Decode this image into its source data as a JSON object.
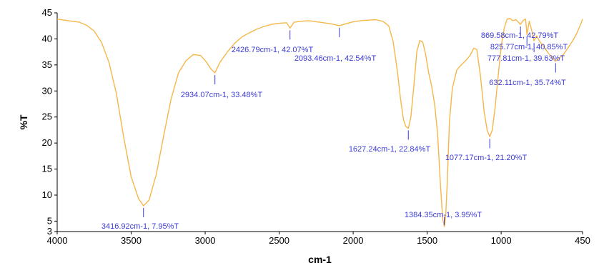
{
  "chart_data": {
    "type": "line",
    "xlabel": "cm-1",
    "ylabel": "%T",
    "xlim": [
      4000,
      450
    ],
    "ylim": [
      3,
      45
    ],
    "x_reversed": true,
    "grid": false,
    "line_color": "#f5b74a",
    "annotation_color": "#3b3bd6",
    "x_ticks": [
      4000,
      3500,
      3000,
      2500,
      2000,
      1500,
      1000,
      450
    ],
    "y_ticks": [
      3,
      5,
      10,
      15,
      20,
      25,
      30,
      35,
      40,
      45
    ],
    "series": [
      {
        "x": [
          4000,
          3950,
          3900,
          3850,
          3800,
          3750,
          3700,
          3650,
          3600,
          3550,
          3500,
          3450,
          3417,
          3380,
          3330,
          3280,
          3230,
          3180,
          3130,
          3080,
          3030,
          2990,
          2960,
          2934,
          2900,
          2850,
          2800,
          2750,
          2700,
          2650,
          2600,
          2550,
          2500,
          2450,
          2427,
          2400,
          2350,
          2300,
          2250,
          2200,
          2150,
          2093,
          2050,
          2000,
          1950,
          1900,
          1850,
          1800,
          1760,
          1730,
          1700,
          1680,
          1660,
          1645,
          1627,
          1610,
          1590,
          1570,
          1550,
          1530,
          1510,
          1490,
          1470,
          1450,
          1430,
          1410,
          1395,
          1384,
          1375,
          1365,
          1350,
          1330,
          1300,
          1270,
          1240,
          1210,
          1185,
          1165,
          1140,
          1115,
          1095,
          1077,
          1060,
          1040,
          1020,
          1000,
          980,
          960,
          940,
          920,
          900,
          870,
          850,
          835,
          826,
          810,
          790,
          778,
          760,
          740,
          720,
          700,
          680,
          660,
          640,
          632,
          610,
          580,
          550,
          520,
          490,
          460,
          450
        ],
        "values": [
          43.8,
          43.6,
          43.4,
          43.2,
          42.6,
          41.5,
          39.3,
          35.5,
          29.5,
          21.0,
          13.5,
          9.3,
          7.95,
          9.0,
          14.0,
          21.5,
          28.5,
          33.5,
          35.8,
          37.0,
          36.8,
          35.5,
          34.2,
          33.48,
          35.5,
          37.5,
          39.2,
          40.4,
          41.2,
          41.9,
          42.4,
          42.8,
          43.0,
          43.1,
          42.07,
          43.2,
          43.4,
          43.5,
          43.3,
          43.1,
          42.9,
          42.54,
          42.9,
          43.3,
          43.5,
          43.6,
          43.7,
          43.4,
          42.5,
          39.5,
          33.5,
          28.5,
          24.5,
          23.2,
          22.84,
          25.0,
          31.0,
          37.5,
          39.7,
          39.4,
          37.0,
          33.5,
          31.0,
          27.5,
          22.0,
          12.0,
          5.5,
          3.95,
          6.0,
          12.0,
          24.0,
          30.5,
          34.0,
          35.0,
          35.8,
          36.8,
          38.2,
          38.0,
          33.0,
          26.0,
          22.5,
          21.2,
          22.5,
          27.0,
          33.0,
          38.5,
          42.0,
          43.8,
          43.9,
          43.5,
          43.7,
          42.79,
          43.6,
          43.8,
          40.85,
          43.4,
          41.2,
          39.63,
          40.6,
          39.5,
          38.8,
          38.0,
          37.2,
          36.6,
          35.9,
          35.74,
          36.2,
          37.0,
          38.2,
          39.5,
          41.0,
          43.0,
          43.8
        ]
      }
    ],
    "annotations": [
      {
        "x": 3416.92,
        "y": 7.95,
        "label": "3416.92cm-1, 7.95%T"
      },
      {
        "x": 2934.07,
        "y": 33.48,
        "label": "2934.07cm-1, 33.48%T"
      },
      {
        "x": 2426.79,
        "y": 42.07,
        "label": "2426.79cm-1, 42.07%T"
      },
      {
        "x": 2093.46,
        "y": 42.54,
        "label": "2093.46cm-1, 42.54%T"
      },
      {
        "x": 1627.24,
        "y": 22.84,
        "label": "1627.24cm-1, 22.84%T"
      },
      {
        "x": 1384.35,
        "y": 3.95,
        "label": "1384.35cm-1, 3.95%T"
      },
      {
        "x": 1077.17,
        "y": 21.2,
        "label": "1077.17cm-1, 21.20%T"
      },
      {
        "x": 869.58,
        "y": 42.79,
        "label": "869.58cm-1, 42.79%T"
      },
      {
        "x": 825.77,
        "y": 40.85,
        "label": "825.77cm-1, 40.85%T"
      },
      {
        "x": 777.81,
        "y": 39.63,
        "label": "777.81cm-1, 39.63%T"
      },
      {
        "x": 632.11,
        "y": 35.74,
        "label": "632.11cm-1, 35.74%T"
      }
    ]
  }
}
